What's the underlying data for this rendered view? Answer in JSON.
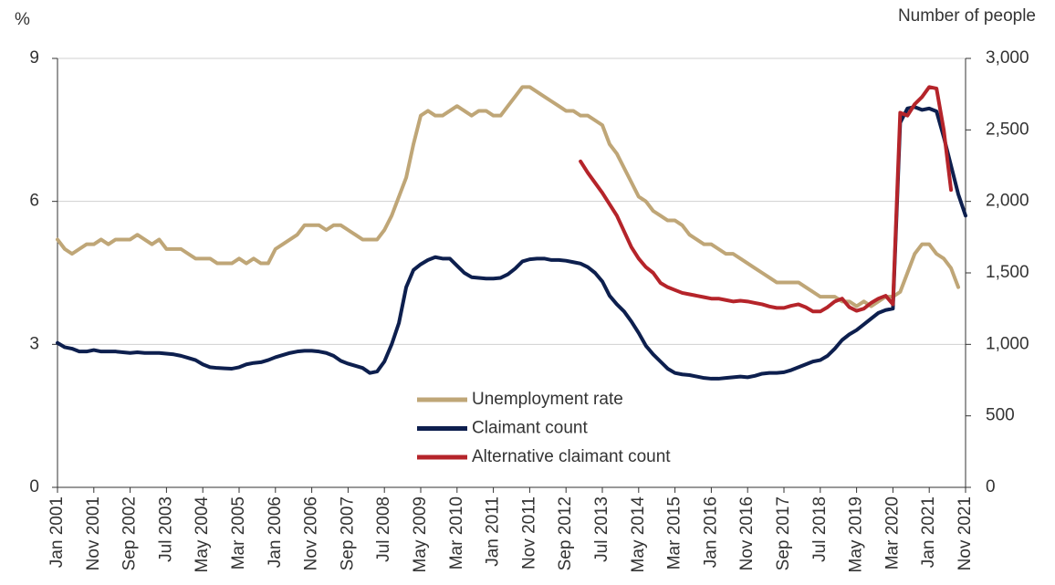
{
  "chart_data": {
    "type": "line",
    "ylabel": "%",
    "y2label": "Number of people",
    "categories": [
      "Jan 2001",
      null,
      null,
      null,
      null,
      "Nov 2001",
      null,
      null,
      null,
      null,
      "Sep 2002",
      null,
      null,
      null,
      null,
      "Jul 2003",
      null,
      null,
      null,
      null,
      "May 2004",
      null,
      null,
      null,
      null,
      "Mar 2005",
      null,
      null,
      null,
      null,
      "Jan 2006",
      null,
      null,
      null,
      null,
      "Nov 2006",
      null,
      null,
      null,
      null,
      "Sep 2007",
      null,
      null,
      null,
      null,
      "Jul 2008",
      null,
      null,
      null,
      null,
      "May 2009",
      null,
      null,
      null,
      null,
      "Mar 2010",
      null,
      null,
      null,
      null,
      "Jan 2011",
      null,
      null,
      null,
      null,
      "Nov 2011",
      null,
      null,
      null,
      null,
      "Sep 2012",
      null,
      null,
      null,
      null,
      "Jul 2013",
      null,
      null,
      null,
      null,
      "May 2014",
      null,
      null,
      null,
      null,
      "Mar 2015",
      null,
      null,
      null,
      null,
      "Jan 2016",
      null,
      null,
      null,
      null,
      "Nov 2016",
      null,
      null,
      null,
      null,
      "Sep 2017",
      null,
      null,
      null,
      null,
      "Jul 2018",
      null,
      null,
      null,
      null,
      "May 2019",
      null,
      null,
      null,
      null,
      "Mar 2020",
      null,
      null,
      null,
      null,
      "Jan 2021",
      null,
      null,
      null,
      null,
      "Nov 2021"
    ],
    "series": [
      {
        "name": "Unemployment rate",
        "color": "#bfa677",
        "axis": "y",
        "values": [
          5.2,
          5.0,
          4.9,
          5.0,
          5.1,
          5.1,
          5.2,
          5.1,
          5.2,
          5.2,
          5.2,
          5.3,
          5.2,
          5.1,
          5.2,
          5.0,
          5.0,
          5.0,
          4.9,
          4.8,
          4.8,
          4.8,
          4.7,
          4.7,
          4.7,
          4.8,
          4.7,
          4.8,
          4.7,
          4.7,
          5.0,
          5.1,
          5.2,
          5.3,
          5.5,
          5.5,
          5.5,
          5.4,
          5.5,
          5.5,
          5.4,
          5.3,
          5.2,
          5.2,
          5.2,
          5.4,
          5.7,
          6.1,
          6.5,
          7.2,
          7.8,
          7.9,
          7.8,
          7.8,
          7.9,
          8.0,
          7.9,
          7.8,
          7.9,
          7.9,
          7.8,
          7.8,
          8.0,
          8.2,
          8.4,
          8.4,
          8.3,
          8.2,
          8.1,
          8.0,
          7.9,
          7.9,
          7.8,
          7.8,
          7.7,
          7.6,
          7.2,
          7.0,
          6.7,
          6.4,
          6.1,
          6.0,
          5.8,
          5.7,
          5.6,
          5.6,
          5.5,
          5.3,
          5.2,
          5.1,
          5.1,
          5.0,
          4.9,
          4.9,
          4.8,
          4.7,
          4.6,
          4.5,
          4.4,
          4.3,
          4.3,
          4.3,
          4.3,
          4.2,
          4.1,
          4.0,
          4.0,
          4.0,
          3.9,
          3.9,
          3.8,
          3.9,
          3.8,
          3.9,
          4.0,
          4.0,
          4.1,
          4.5,
          4.9,
          5.1,
          5.1,
          4.9,
          4.8,
          4.6,
          4.2,
          null
        ]
      },
      {
        "name": "Claimant count",
        "color": "#0d1f4e",
        "axis": "y2",
        "values": [
          1010,
          980,
          970,
          950,
          950,
          960,
          950,
          950,
          950,
          945,
          940,
          945,
          940,
          940,
          940,
          935,
          930,
          920,
          905,
          890,
          860,
          840,
          835,
          832,
          830,
          840,
          860,
          870,
          875,
          890,
          910,
          925,
          940,
          950,
          955,
          955,
          950,
          940,
          920,
          885,
          865,
          850,
          835,
          800,
          810,
          880,
          1000,
          1150,
          1400,
          1520,
          1560,
          1590,
          1610,
          1600,
          1600,
          1550,
          1500,
          1470,
          1465,
          1460,
          1460,
          1465,
          1490,
          1530,
          1580,
          1595,
          1600,
          1600,
          1590,
          1590,
          1585,
          1575,
          1565,
          1540,
          1500,
          1440,
          1340,
          1280,
          1230,
          1160,
          1080,
          990,
          930,
          880,
          830,
          800,
          790,
          785,
          775,
          765,
          760,
          760,
          765,
          770,
          775,
          770,
          780,
          795,
          800,
          800,
          805,
          820,
          840,
          860,
          880,
          890,
          920,
          970,
          1030,
          1070,
          1100,
          1140,
          1180,
          1220,
          1240,
          1250,
          2550,
          2650,
          2660,
          2640,
          2650,
          2630,
          2450,
          2250,
          2050,
          1900
        ]
      },
      {
        "name": "Alternative claimant count",
        "color": "#b5242a",
        "axis": "y2",
        "values": [
          null,
          null,
          null,
          null,
          null,
          null,
          null,
          null,
          null,
          null,
          null,
          null,
          null,
          null,
          null,
          null,
          null,
          null,
          null,
          null,
          null,
          null,
          null,
          null,
          null,
          null,
          null,
          null,
          null,
          null,
          null,
          null,
          null,
          null,
          null,
          null,
          null,
          null,
          null,
          null,
          null,
          null,
          null,
          null,
          null,
          null,
          null,
          null,
          null,
          null,
          null,
          null,
          null,
          null,
          null,
          null,
          null,
          null,
          null,
          null,
          null,
          null,
          null,
          null,
          null,
          null,
          null,
          null,
          null,
          null,
          null,
          null,
          2280,
          2200,
          2130,
          2060,
          1980,
          1900,
          1790,
          1680,
          1600,
          1540,
          1500,
          1430,
          1400,
          1380,
          1360,
          1350,
          1340,
          1330,
          1320,
          1320,
          1310,
          1300,
          1305,
          1300,
          1290,
          1280,
          1265,
          1255,
          1255,
          1270,
          1280,
          1260,
          1230,
          1230,
          1260,
          1300,
          1320,
          1260,
          1235,
          1250,
          1290,
          1320,
          1340,
          1280,
          2620,
          2600,
          2680,
          2730,
          2800,
          2790,
          2500,
          2080,
          null,
          null
        ]
      }
    ],
    "ylim": [
      0,
      9
    ],
    "yticks": [
      0,
      3,
      6,
      9
    ],
    "y2lim": [
      0,
      3000
    ],
    "y2ticks": [
      0,
      500,
      {
        "value": 1000,
        "label": "1,000"
      },
      {
        "value": 1500,
        "label": "1,500"
      },
      {
        "value": 2000,
        "label": "2,000"
      },
      {
        "value": 2500,
        "label": "2,500"
      },
      {
        "value": 3000,
        "label": "3,000"
      }
    ],
    "grid": true,
    "legend": "center"
  }
}
